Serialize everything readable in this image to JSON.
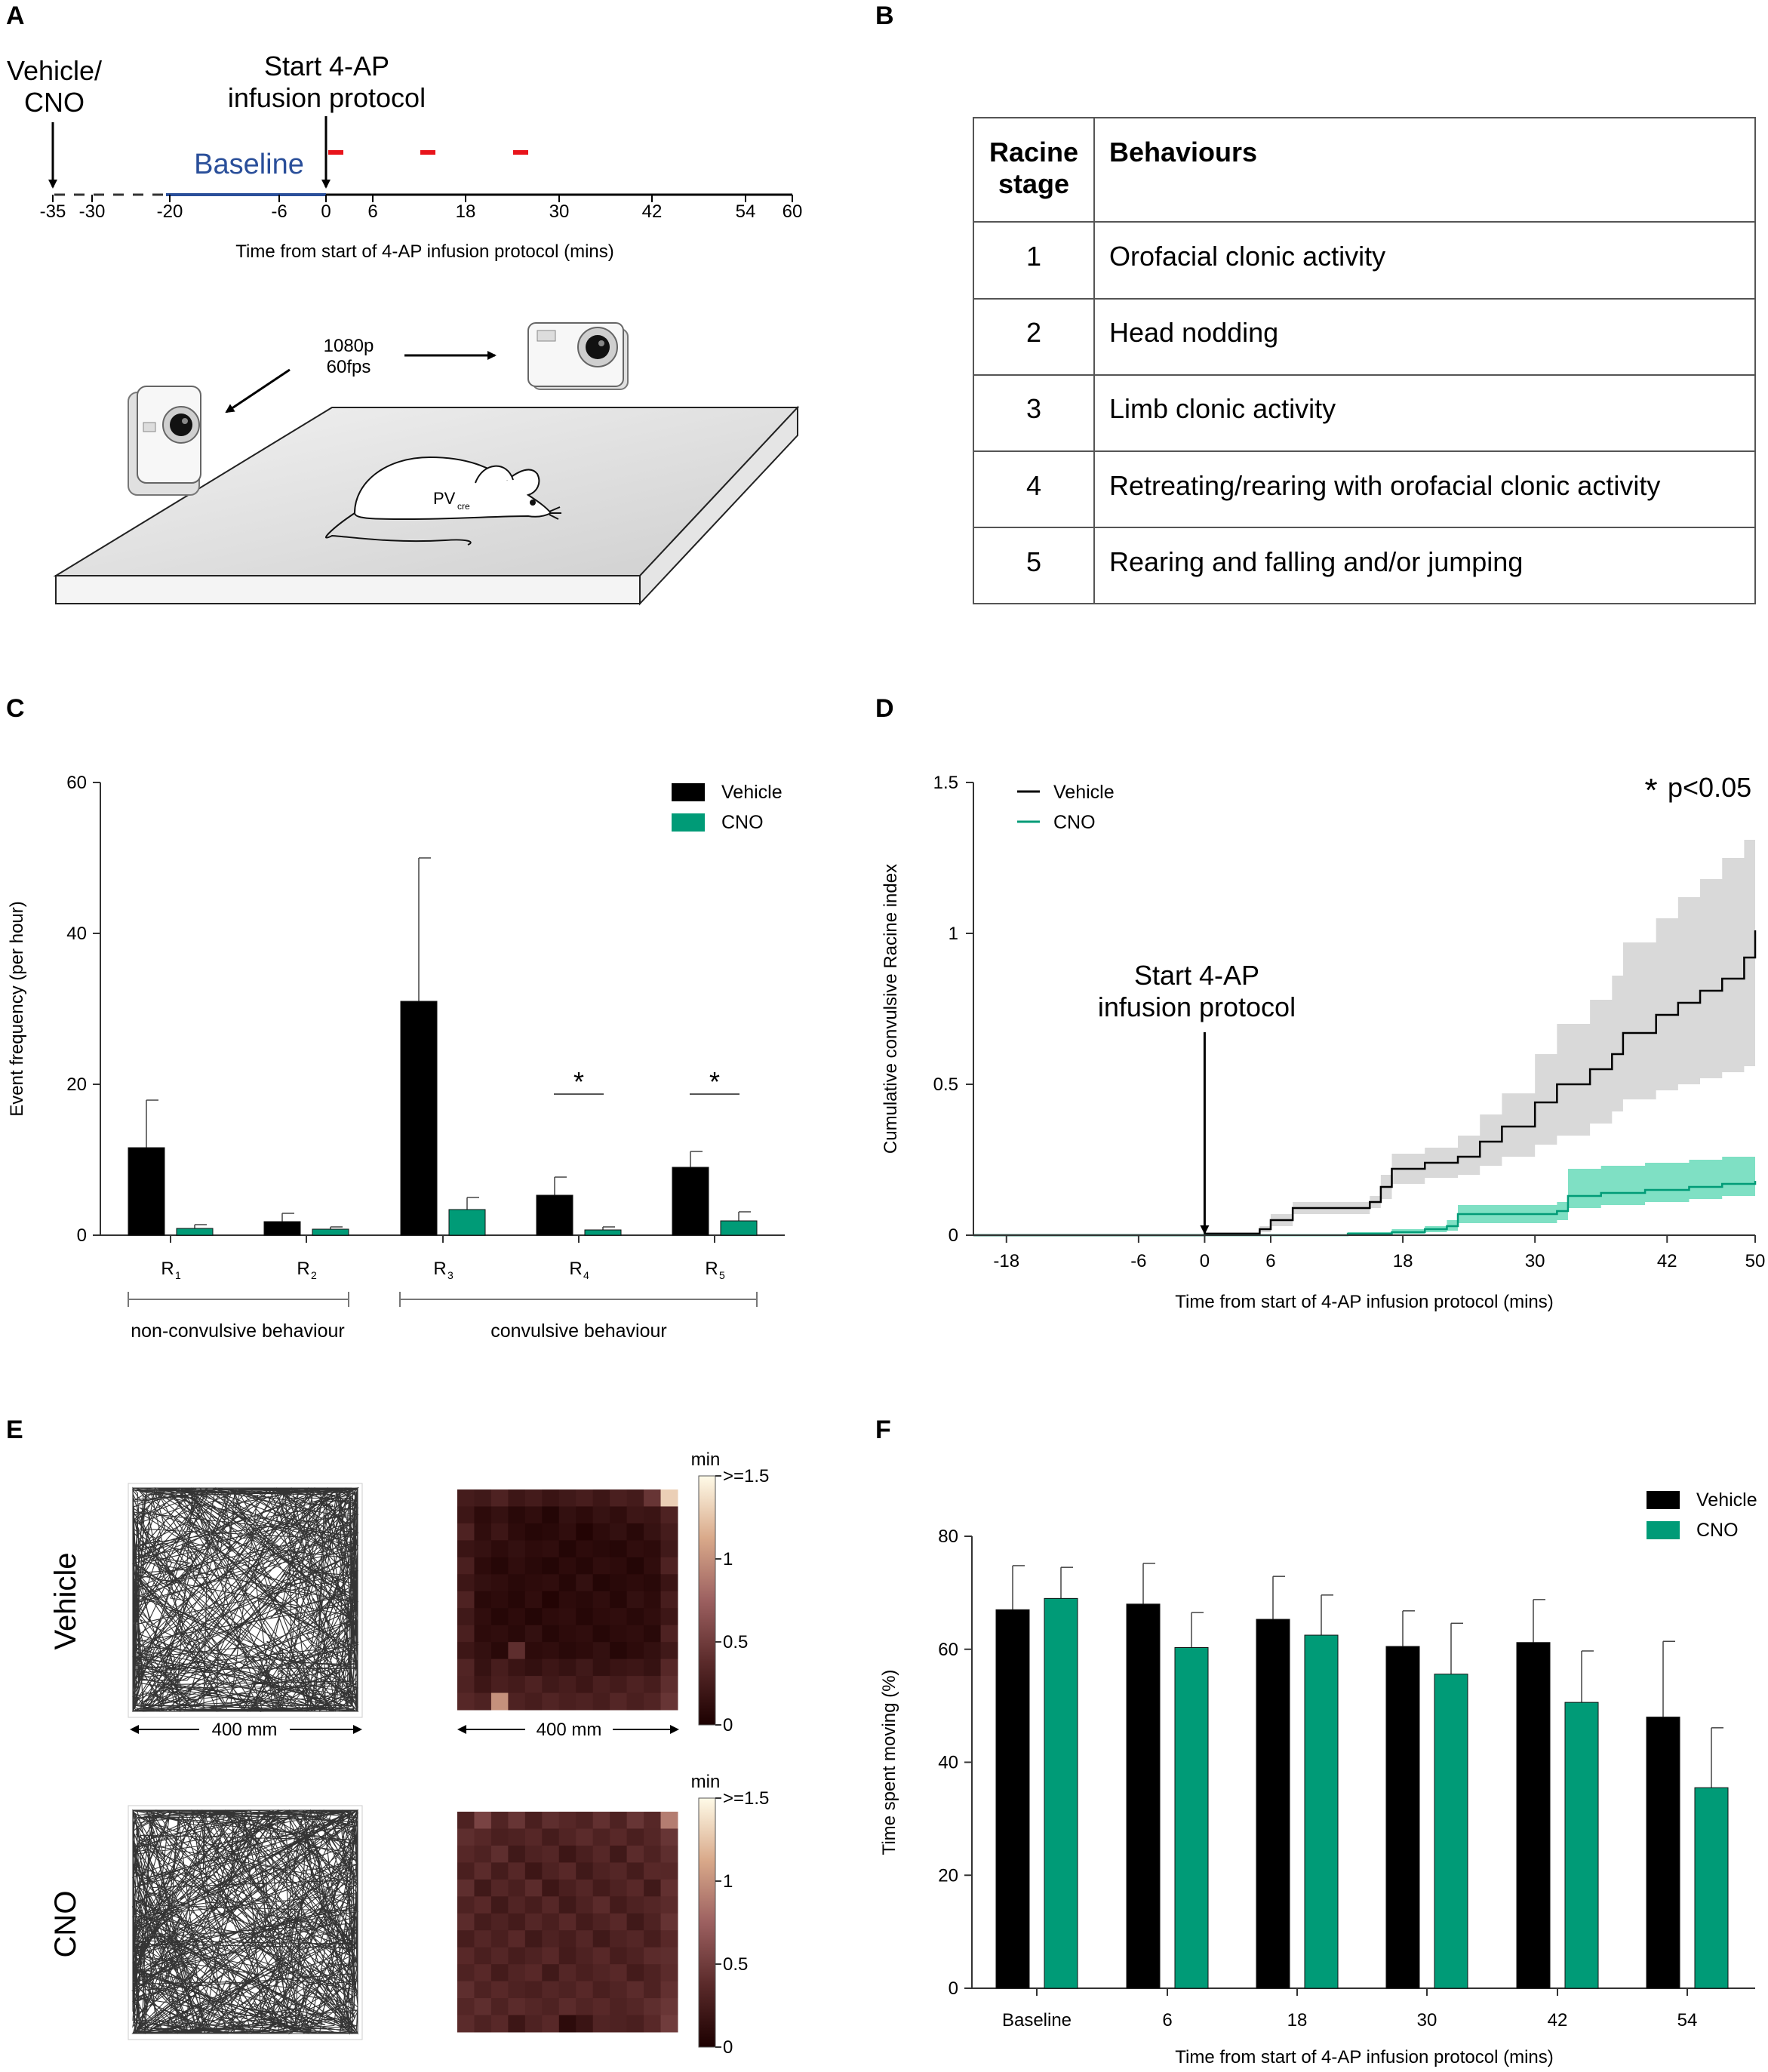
{
  "colors": {
    "vehicle": "#000000",
    "cno": "#009b77",
    "vehicle_band": "#d9d9d9",
    "cno_band": "#7fe0c4",
    "baseline": "#2a4f9a",
    "marker": "#e8141b"
  },
  "panels": {
    "a": "A",
    "b": "B",
    "c": "C",
    "d": "D",
    "e": "E",
    "f": "F"
  },
  "panel_a": {
    "vehicle_cno_line1": "Vehicle/",
    "vehicle_cno_line2": "CNO",
    "start_line1": "Start 4-AP",
    "start_line2": "infusion protocol",
    "baseline": "Baseline",
    "ticks": [
      "-35",
      "-30",
      "-20",
      "-6",
      "0",
      "6",
      "18",
      "30",
      "42",
      "54",
      "60"
    ],
    "xlabel": "Time from start of 4-AP infusion protocol (mins)",
    "camera_line1": "1080p",
    "camera_line2": "60fps",
    "mouse_label": "PV",
    "mouse_sub": "cre"
  },
  "panel_b": {
    "header_stage_line1": "Racine",
    "header_stage_line2": "stage",
    "header_behaviours": "Behaviours",
    "rows": [
      {
        "stage": "1",
        "behaviour": "Orofacial clonic activity"
      },
      {
        "stage": "2",
        "behaviour": "Head nodding"
      },
      {
        "stage": "3",
        "behaviour": "Limb clonic activity"
      },
      {
        "stage": "4",
        "behaviour": "Retreating/rearing with orofacial clonic activity"
      },
      {
        "stage": "5",
        "behaviour": "Rearing and falling and/or jumping"
      }
    ]
  },
  "chart_data": [
    {
      "panel": "C",
      "type": "bar",
      "ylabel": "Event frequency (per hour)",
      "ylim": [
        0,
        60
      ],
      "yticks": [
        "0",
        "20",
        "40",
        "60"
      ],
      "categories": [
        "R1",
        "R2",
        "R3",
        "R4",
        "R5"
      ],
      "category_base": "R",
      "category_subs": [
        "1",
        "2",
        "3",
        "4",
        "5"
      ],
      "series": [
        {
          "name": "Vehicle",
          "values": [
            11.6,
            1.8,
            31,
            5.3,
            9
          ],
          "errors": [
            6.3,
            1.1,
            19,
            2.4,
            2.1
          ]
        },
        {
          "name": "CNO",
          "values": [
            0.9,
            0.8,
            3.4,
            0.7,
            1.9
          ],
          "errors": [
            0.5,
            0.3,
            1.6,
            0.4,
            1.2
          ]
        }
      ],
      "significance": [
        "",
        "",
        "",
        "*",
        "*"
      ],
      "groups": [
        {
          "label": "non-convulsive behaviour",
          "categories": [
            0,
            1
          ]
        },
        {
          "label": "convulsive behaviour",
          "categories": [
            2,
            4
          ]
        }
      ],
      "legend": [
        "Vehicle",
        "CNO"
      ]
    },
    {
      "panel": "D",
      "type": "line",
      "ylabel": "Cumulative convulsive Racine index",
      "xlabel": "Time from start of 4-AP infusion protocol (mins)",
      "xlim": [
        -21,
        50
      ],
      "ylim": [
        0,
        1.5
      ],
      "xticks": [
        -18,
        -6,
        0,
        6,
        18,
        30,
        42,
        50
      ],
      "yticks": [
        "0",
        "0.5",
        "1",
        "1.5"
      ],
      "annotation_star": "*",
      "annotation_text": "p<0.05",
      "arrow_line1": "Start 4-AP",
      "arrow_line2": "infusion protocol",
      "legend": [
        "Vehicle",
        "CNO"
      ],
      "series": [
        {
          "name": "Vehicle",
          "x": [
            -21,
            0,
            5,
            6,
            8,
            12,
            15,
            16,
            17,
            20,
            23,
            25,
            27,
            30,
            32,
            35,
            37,
            38,
            41,
            43,
            45,
            47,
            49,
            50
          ],
          "y": [
            0,
            0.005,
            0.02,
            0.05,
            0.09,
            0.09,
            0.11,
            0.16,
            0.22,
            0.24,
            0.26,
            0.31,
            0.36,
            0.44,
            0.5,
            0.55,
            0.6,
            0.67,
            0.73,
            0.77,
            0.81,
            0.85,
            0.92,
            1.01
          ],
          "lower": [
            0,
            0,
            0.01,
            0.03,
            0.07,
            0.07,
            0.09,
            0.12,
            0.17,
            0.19,
            0.2,
            0.23,
            0.26,
            0.3,
            0.33,
            0.37,
            0.41,
            0.45,
            0.48,
            0.5,
            0.52,
            0.54,
            0.56,
            0.57
          ],
          "upper": [
            0,
            0.01,
            0.03,
            0.07,
            0.11,
            0.11,
            0.13,
            0.2,
            0.27,
            0.29,
            0.33,
            0.4,
            0.47,
            0.6,
            0.7,
            0.78,
            0.86,
            0.97,
            1.05,
            1.12,
            1.18,
            1.25,
            1.31,
            1.34
          ]
        },
        {
          "name": "CNO",
          "x": [
            -21,
            8,
            13,
            17,
            20,
            22,
            23,
            30,
            32,
            33,
            36,
            40,
            44,
            47,
            50
          ],
          "y": [
            0,
            0,
            0.005,
            0.01,
            0.02,
            0.03,
            0.07,
            0.07,
            0.08,
            0.13,
            0.14,
            0.15,
            0.16,
            0.17,
            0.18
          ],
          "lower": [
            0,
            0,
            0,
            0.005,
            0.01,
            0.015,
            0.04,
            0.04,
            0.05,
            0.09,
            0.1,
            0.11,
            0.12,
            0.13,
            0.13
          ],
          "upper": [
            0,
            0,
            0.01,
            0.02,
            0.03,
            0.05,
            0.1,
            0.1,
            0.11,
            0.22,
            0.23,
            0.24,
            0.25,
            0.26,
            0.27
          ]
        }
      ]
    },
    {
      "panel": "E",
      "type": "heatmap",
      "row_labels": [
        "Vehicle",
        "CNO"
      ],
      "scale_label": "400 mm",
      "colorbar_title": "min",
      "colorbar_ticks": [
        ">=1.5",
        "1",
        "0.5",
        "0"
      ],
      "vmin": 0,
      "vmax": 1.5,
      "grid": [
        [
          [
            0.25,
            0.22,
            0.3,
            0.2,
            0.24,
            0.18,
            0.22,
            0.26,
            0.2,
            0.28,
            0.24,
            0.45,
            1.3
          ],
          [
            0.2,
            0.1,
            0.15,
            0.08,
            0.12,
            0.05,
            0.14,
            0.1,
            0.16,
            0.12,
            0.2,
            0.18,
            0.3
          ],
          [
            0.3,
            0.12,
            0.2,
            0.1,
            0.06,
            0.08,
            0.12,
            0.04,
            0.1,
            0.14,
            0.08,
            0.16,
            0.25
          ],
          [
            0.18,
            0.15,
            0.1,
            0.14,
            0.1,
            0.12,
            0.05,
            0.1,
            0.08,
            0.06,
            0.12,
            0.1,
            0.22
          ],
          [
            0.28,
            0.1,
            0.06,
            0.12,
            0.08,
            0.05,
            0.1,
            0.06,
            0.12,
            0.1,
            0.05,
            0.12,
            0.3
          ],
          [
            0.2,
            0.14,
            0.12,
            0.08,
            0.1,
            0.12,
            0.06,
            0.14,
            0.05,
            0.08,
            0.1,
            0.08,
            0.18
          ],
          [
            0.3,
            0.08,
            0.1,
            0.06,
            0.12,
            0.04,
            0.1,
            0.08,
            0.12,
            0.06,
            0.14,
            0.1,
            0.26
          ],
          [
            0.22,
            0.12,
            0.06,
            0.1,
            0.05,
            0.1,
            0.12,
            0.06,
            0.1,
            0.12,
            0.08,
            0.12,
            0.2
          ],
          [
            0.28,
            0.1,
            0.12,
            0.08,
            0.14,
            0.06,
            0.1,
            0.12,
            0.06,
            0.1,
            0.12,
            0.08,
            0.3
          ],
          [
            0.2,
            0.14,
            0.08,
            0.4,
            0.1,
            0.12,
            0.08,
            0.1,
            0.14,
            0.06,
            0.1,
            0.14,
            0.22
          ],
          [
            0.32,
            0.16,
            0.26,
            0.18,
            0.14,
            0.2,
            0.16,
            0.22,
            0.14,
            0.18,
            0.2,
            0.16,
            0.35
          ],
          [
            0.3,
            0.2,
            0.28,
            0.24,
            0.3,
            0.22,
            0.26,
            0.2,
            0.28,
            0.24,
            0.3,
            0.26,
            0.4
          ],
          [
            0.35,
            0.3,
            1.0,
            0.3,
            0.26,
            0.32,
            0.28,
            0.3,
            0.26,
            0.34,
            0.28,
            0.32,
            0.45
          ]
        ],
        [
          [
            0.3,
            0.55,
            0.32,
            0.45,
            0.28,
            0.4,
            0.35,
            0.3,
            0.42,
            0.3,
            0.45,
            0.35,
            0.9
          ],
          [
            0.4,
            0.35,
            0.28,
            0.3,
            0.35,
            0.25,
            0.32,
            0.38,
            0.3,
            0.36,
            0.28,
            0.34,
            0.45
          ],
          [
            0.35,
            0.3,
            0.4,
            0.22,
            0.3,
            0.34,
            0.2,
            0.28,
            0.35,
            0.22,
            0.38,
            0.3,
            0.4
          ],
          [
            0.28,
            0.38,
            0.25,
            0.35,
            0.2,
            0.3,
            0.36,
            0.22,
            0.3,
            0.34,
            0.25,
            0.36,
            0.35
          ],
          [
            0.4,
            0.22,
            0.34,
            0.28,
            0.38,
            0.2,
            0.28,
            0.34,
            0.24,
            0.3,
            0.36,
            0.22,
            0.42
          ],
          [
            0.3,
            0.36,
            0.22,
            0.32,
            0.26,
            0.35,
            0.22,
            0.3,
            0.38,
            0.24,
            0.3,
            0.34,
            0.38
          ],
          [
            0.38,
            0.25,
            0.3,
            0.24,
            0.34,
            0.28,
            0.36,
            0.24,
            0.3,
            0.36,
            0.22,
            0.3,
            0.44
          ],
          [
            0.26,
            0.34,
            0.28,
            0.36,
            0.22,
            0.3,
            0.26,
            0.34,
            0.22,
            0.3,
            0.34,
            0.26,
            0.36
          ],
          [
            0.36,
            0.28,
            0.34,
            0.26,
            0.3,
            0.36,
            0.24,
            0.3,
            0.36,
            0.26,
            0.3,
            0.38,
            0.4
          ],
          [
            0.3,
            0.36,
            0.24,
            0.32,
            0.36,
            0.22,
            0.34,
            0.28,
            0.32,
            0.36,
            0.24,
            0.3,
            0.38
          ],
          [
            0.4,
            0.3,
            0.36,
            0.3,
            0.28,
            0.34,
            0.3,
            0.36,
            0.28,
            0.32,
            0.38,
            0.3,
            0.42
          ],
          [
            0.34,
            0.4,
            0.3,
            0.38,
            0.34,
            0.3,
            0.38,
            0.32,
            0.36,
            0.3,
            0.34,
            0.4,
            0.46
          ],
          [
            0.38,
            0.3,
            0.36,
            0.2,
            0.3,
            0.36,
            0.1,
            0.18,
            0.32,
            0.3,
            0.28,
            0.36,
            0.5
          ]
        ]
      ]
    },
    {
      "panel": "F",
      "type": "bar",
      "ylabel": "Time spent moving (%)",
      "xlabel": "Time from start of 4-AP infusion protocol (mins)",
      "ylim": [
        0,
        80
      ],
      "yticks": [
        "0",
        "20",
        "40",
        "60",
        "80"
      ],
      "categories": [
        "Baseline",
        "6",
        "18",
        "30",
        "42",
        "54"
      ],
      "series": [
        {
          "name": "Vehicle",
          "values": [
            67,
            68,
            65.3,
            60.5,
            61.2,
            48
          ],
          "errors": [
            7.8,
            7.2,
            7.6,
            6.3,
            7.6,
            13.4
          ]
        },
        {
          "name": "CNO",
          "values": [
            69,
            60.3,
            62.5,
            55.6,
            50.6,
            35.5
          ],
          "errors": [
            5.5,
            6.2,
            7.1,
            9.0,
            9.1,
            10.6
          ]
        }
      ],
      "legend": [
        "Vehicle",
        "CNO"
      ]
    }
  ]
}
